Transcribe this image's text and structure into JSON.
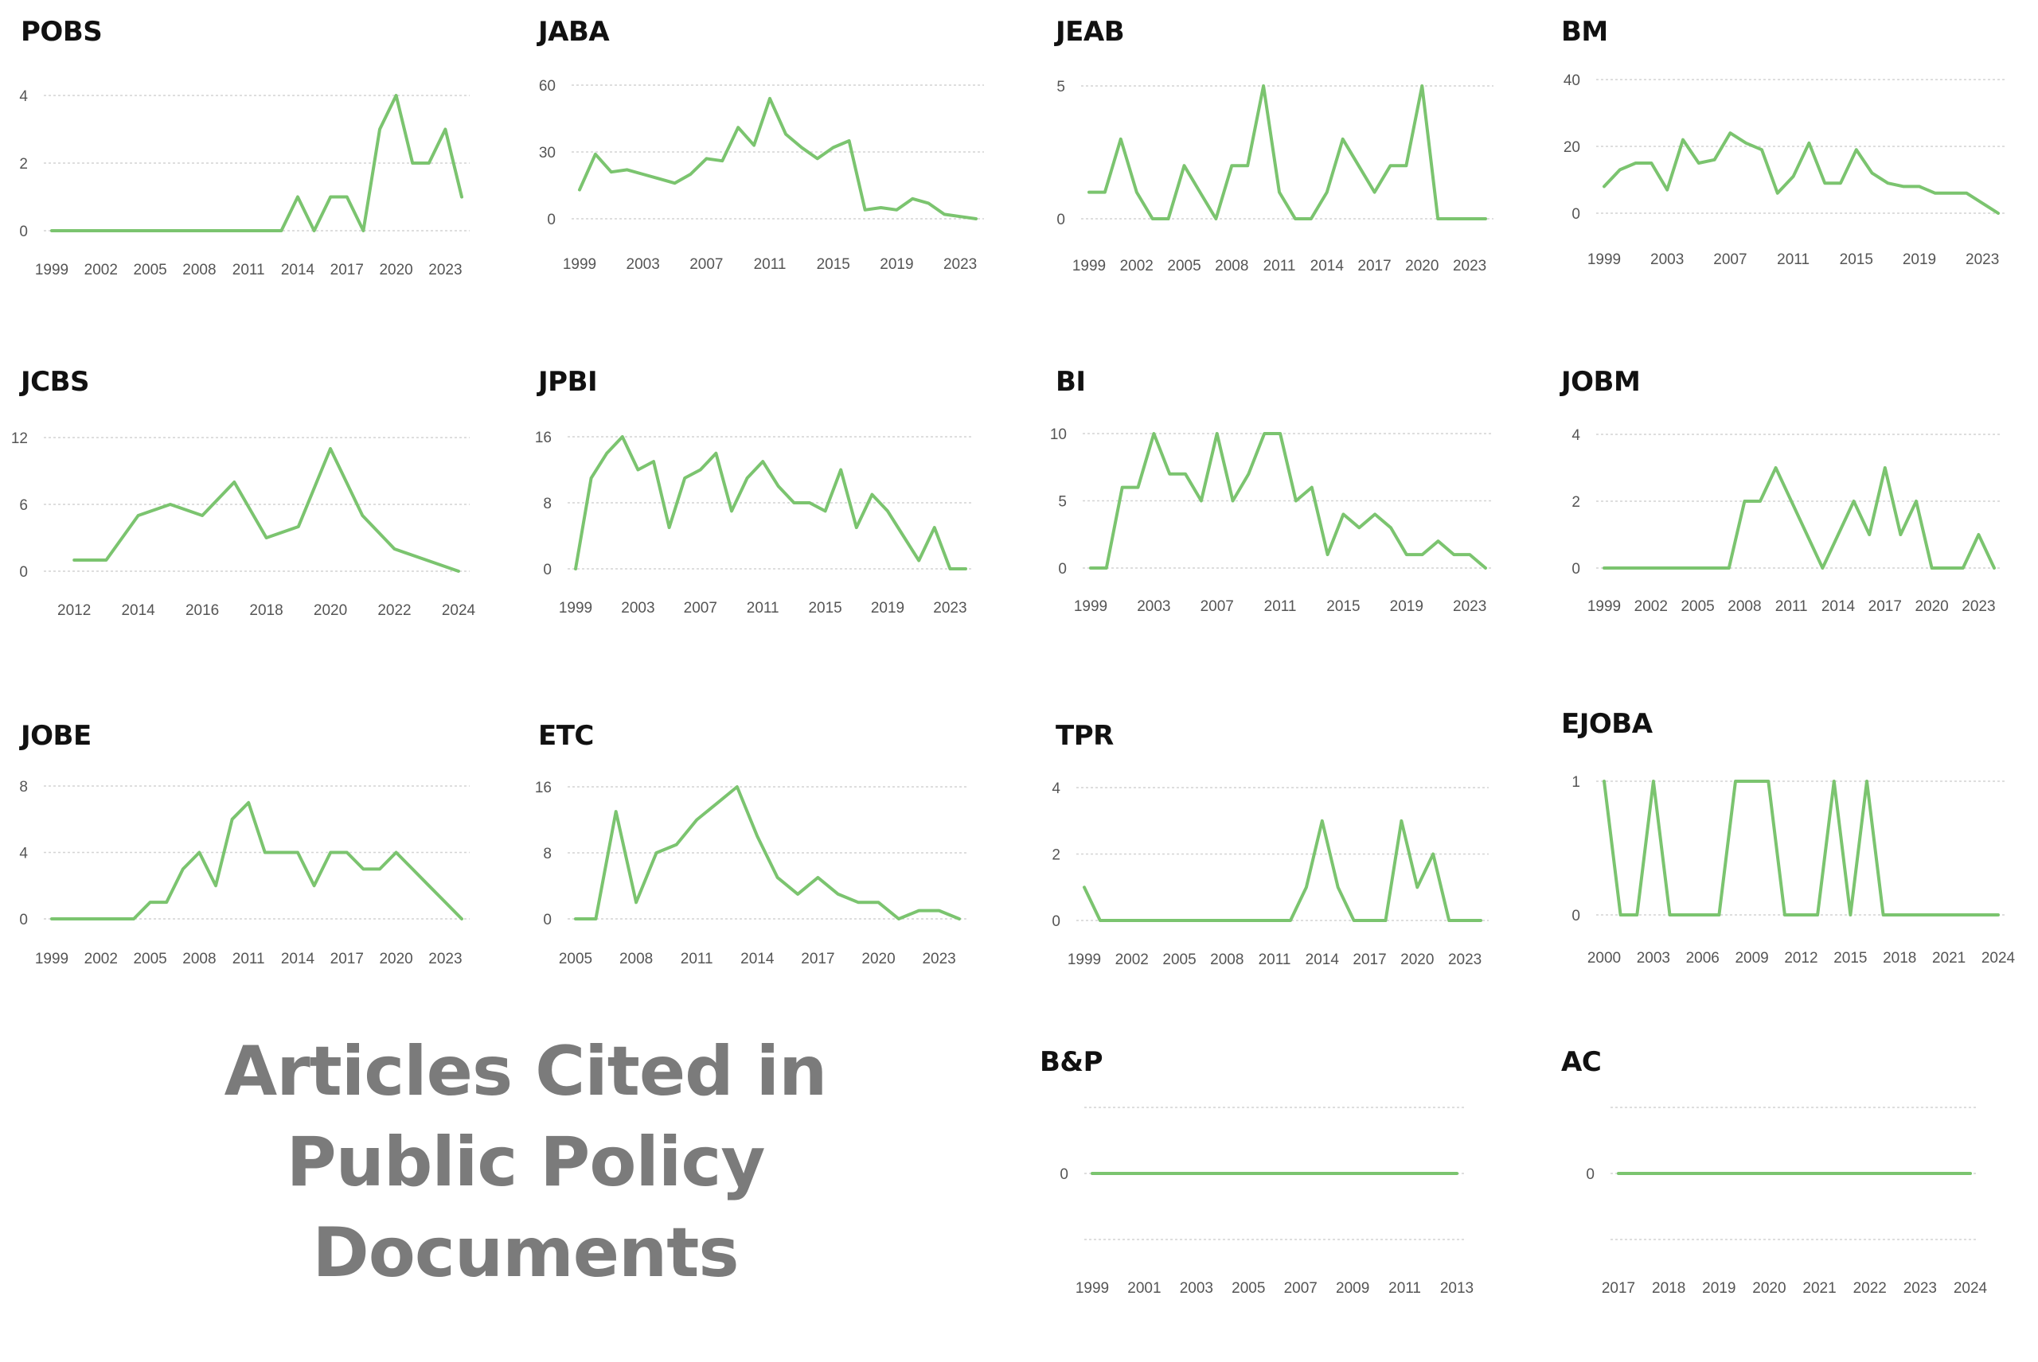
{
  "page_title": "Articles Cited in Public Policy Documents",
  "colors": {
    "line": "#7bc46f",
    "grid": "#d4d4d4",
    "tick": "#555555",
    "title": "#111111",
    "big_title": "#7b7b7b"
  },
  "chart_data": [
    {
      "type": "line",
      "title": "POBS",
      "ylim": [
        0,
        4
      ],
      "yticks": [
        0,
        2,
        4
      ],
      "xlim": [
        1999,
        2024
      ],
      "xticks": [
        1999,
        2002,
        2005,
        2008,
        2011,
        2014,
        2017,
        2020,
        2023
      ],
      "x": [
        1999,
        2000,
        2001,
        2002,
        2003,
        2004,
        2005,
        2006,
        2007,
        2008,
        2009,
        2010,
        2011,
        2012,
        2013,
        2014,
        2015,
        2016,
        2017,
        2018,
        2019,
        2020,
        2021,
        2022,
        2023,
        2024
      ],
      "values": [
        0,
        0,
        0,
        0,
        0,
        0,
        0,
        0,
        0,
        0,
        0,
        0,
        0,
        0,
        0,
        1,
        0,
        1,
        1,
        0,
        3,
        4,
        2,
        2,
        3,
        1
      ]
    },
    {
      "type": "line",
      "title": "JABA",
      "ylim": [
        0,
        60
      ],
      "yticks": [
        0,
        30,
        60
      ],
      "xlim": [
        1999,
        2024
      ],
      "xticks": [
        1999,
        2003,
        2007,
        2011,
        2015,
        2019,
        2023
      ],
      "x": [
        1999,
        2000,
        2001,
        2002,
        2003,
        2004,
        2005,
        2006,
        2007,
        2008,
        2009,
        2010,
        2011,
        2012,
        2013,
        2014,
        2015,
        2016,
        2017,
        2018,
        2019,
        2020,
        2021,
        2022,
        2023,
        2024
      ],
      "values": [
        13,
        29,
        21,
        22,
        20,
        18,
        16,
        20,
        27,
        26,
        41,
        33,
        54,
        38,
        32,
        27,
        32,
        35,
        4,
        5,
        4,
        9,
        7,
        2,
        1,
        0
      ]
    },
    {
      "type": "line",
      "title": "JEAB",
      "ylim": [
        0,
        5
      ],
      "yticks": [
        0,
        5
      ],
      "xlim": [
        1999,
        2024
      ],
      "xticks": [
        1999,
        2002,
        2005,
        2008,
        2011,
        2014,
        2017,
        2020,
        2023
      ],
      "x": [
        1999,
        2000,
        2001,
        2002,
        2003,
        2004,
        2005,
        2006,
        2007,
        2008,
        2009,
        2010,
        2011,
        2012,
        2013,
        2014,
        2015,
        2016,
        2017,
        2018,
        2019,
        2020,
        2021,
        2022,
        2023,
        2024
      ],
      "values": [
        1,
        1,
        3,
        1,
        0,
        0,
        2,
        1,
        0,
        2,
        2,
        5,
        1,
        0,
        0,
        1,
        3,
        2,
        1,
        2,
        2,
        5,
        0,
        0,
        0,
        0
      ]
    },
    {
      "type": "line",
      "title": "BM",
      "ylim": [
        0,
        40
      ],
      "yticks": [
        0,
        20,
        40
      ],
      "xlim": [
        1999,
        2024
      ],
      "xticks": [
        1999,
        2003,
        2007,
        2011,
        2015,
        2019,
        2023
      ],
      "x": [
        1999,
        2000,
        2001,
        2002,
        2003,
        2004,
        2005,
        2006,
        2007,
        2008,
        2009,
        2010,
        2011,
        2012,
        2013,
        2014,
        2015,
        2016,
        2017,
        2018,
        2019,
        2020,
        2021,
        2022,
        2023,
        2024
      ],
      "values": [
        8,
        13,
        15,
        15,
        7,
        22,
        15,
        16,
        24,
        21,
        19,
        6,
        11,
        21,
        9,
        9,
        19,
        12,
        9,
        8,
        8,
        6,
        6,
        6,
        3,
        0
      ]
    },
    {
      "type": "line",
      "title": "JCBS",
      "ylim": [
        0,
        12
      ],
      "yticks": [
        0,
        6,
        12
      ],
      "xlim": [
        2011.3,
        2024.1
      ],
      "xticks": [
        2012,
        2014,
        2016,
        2018,
        2020,
        2022,
        2024
      ],
      "x": [
        2012,
        2013,
        2014,
        2015,
        2016,
        2017,
        2018,
        2019,
        2020,
        2021,
        2022,
        2023,
        2024
      ],
      "values": [
        1,
        1,
        5,
        6,
        5,
        8,
        3,
        4,
        11,
        5,
        2,
        1,
        0
      ]
    },
    {
      "type": "line",
      "title": "JPBI",
      "ylim": [
        0,
        16
      ],
      "yticks": [
        0,
        8,
        16
      ],
      "xlim": [
        1999,
        2024
      ],
      "xticks": [
        1999,
        2003,
        2007,
        2011,
        2015,
        2019,
        2023
      ],
      "x": [
        1999,
        2000,
        2001,
        2002,
        2003,
        2004,
        2005,
        2006,
        2007,
        2008,
        2009,
        2010,
        2011,
        2012,
        2013,
        2014,
        2015,
        2016,
        2017,
        2018,
        2019,
        2020,
        2021,
        2022,
        2023,
        2024
      ],
      "values": [
        0,
        11,
        14,
        16,
        12,
        13,
        5,
        11,
        12,
        14,
        7,
        11,
        13,
        10,
        8,
        8,
        7,
        12,
        5,
        9,
        7,
        4,
        1,
        5,
        0,
        0
      ]
    },
    {
      "type": "line",
      "title": "BI",
      "ylim": [
        0,
        10
      ],
      "yticks": [
        0,
        5,
        10
      ],
      "xlim": [
        1999,
        2024
      ],
      "xticks": [
        1999,
        2003,
        2007,
        2011,
        2015,
        2019,
        2023
      ],
      "x": [
        1999,
        2000,
        2001,
        2002,
        2003,
        2004,
        2005,
        2006,
        2007,
        2008,
        2009,
        2010,
        2011,
        2012,
        2013,
        2014,
        2015,
        2016,
        2017,
        2018,
        2019,
        2020,
        2021,
        2022,
        2023,
        2024
      ],
      "values": [
        0,
        0,
        6,
        6,
        10,
        7,
        7,
        5,
        10,
        5,
        7,
        10,
        10,
        5,
        6,
        1,
        4,
        3,
        4,
        3,
        1,
        1,
        2,
        1,
        1,
        0
      ]
    },
    {
      "type": "line",
      "title": "JOBM",
      "ylim": [
        0,
        4
      ],
      "yticks": [
        0,
        2,
        4
      ],
      "xlim": [
        1999,
        2024
      ],
      "xticks": [
        1999,
        2002,
        2005,
        2008,
        2011,
        2014,
        2017,
        2020,
        2023
      ],
      "x": [
        1999,
        2000,
        2001,
        2002,
        2003,
        2004,
        2005,
        2006,
        2007,
        2008,
        2009,
        2010,
        2011,
        2012,
        2013,
        2014,
        2015,
        2016,
        2017,
        2018,
        2019,
        2020,
        2021,
        2022,
        2023,
        2024
      ],
      "values": [
        0,
        0,
        0,
        0,
        0,
        0,
        0,
        0,
        0,
        2,
        2,
        3,
        2,
        1,
        0,
        1,
        2,
        1,
        3,
        1,
        2,
        0,
        0,
        0,
        1,
        0
      ]
    },
    {
      "type": "line",
      "title": "JOBE",
      "ylim": [
        0,
        8
      ],
      "yticks": [
        0,
        4,
        8
      ],
      "xlim": [
        1999,
        2024
      ],
      "xticks": [
        1999,
        2002,
        2005,
        2008,
        2011,
        2014,
        2017,
        2020,
        2023
      ],
      "x": [
        1999,
        2000,
        2001,
        2002,
        2003,
        2004,
        2005,
        2006,
        2007,
        2008,
        2009,
        2010,
        2011,
        2012,
        2013,
        2014,
        2015,
        2016,
        2017,
        2018,
        2019,
        2020,
        2021,
        2022,
        2023,
        2024
      ],
      "values": [
        0,
        0,
        0,
        0,
        0,
        0,
        1,
        1,
        3,
        4,
        2,
        6,
        7,
        4,
        4,
        4,
        2,
        4,
        4,
        3,
        3,
        4,
        3,
        2,
        1,
        0
      ]
    },
    {
      "type": "line",
      "title": "ETC",
      "ylim": [
        0,
        16
      ],
      "yticks": [
        0,
        8,
        16
      ],
      "xlim": [
        2005,
        2024
      ],
      "xticks": [
        2005,
        2008,
        2011,
        2014,
        2017,
        2020,
        2023
      ],
      "x": [
        2005,
        2006,
        2007,
        2008,
        2009,
        2010,
        2011,
        2012,
        2013,
        2014,
        2015,
        2016,
        2017,
        2018,
        2019,
        2020,
        2021,
        2022,
        2023,
        2024
      ],
      "values": [
        0,
        0,
        13,
        2,
        8,
        9,
        12,
        14,
        16,
        10,
        5,
        3,
        5,
        3,
        2,
        2,
        0,
        1,
        1,
        0
      ]
    },
    {
      "type": "line",
      "title": "TPR",
      "ylim": [
        0,
        4
      ],
      "yticks": [
        0,
        2,
        4
      ],
      "xlim": [
        1999,
        2024
      ],
      "xticks": [
        1999,
        2002,
        2005,
        2008,
        2011,
        2014,
        2017,
        2020,
        2023
      ],
      "x": [
        1999,
        2000,
        2001,
        2002,
        2003,
        2004,
        2005,
        2006,
        2007,
        2008,
        2009,
        2010,
        2011,
        2012,
        2013,
        2014,
        2015,
        2016,
        2017,
        2018,
        2019,
        2020,
        2021,
        2022,
        2023,
        2024
      ],
      "values": [
        1,
        0,
        0,
        0,
        0,
        0,
        0,
        0,
        0,
        0,
        0,
        0,
        0,
        0,
        1,
        3,
        1,
        0,
        0,
        0,
        3,
        1,
        2,
        0,
        0,
        0
      ]
    },
    {
      "type": "line",
      "title": "EJOBA",
      "ylim": [
        0,
        1
      ],
      "yticks": [
        0,
        1
      ],
      "xlim": [
        2000,
        2024
      ],
      "xticks": [
        2000,
        2003,
        2006,
        2009,
        2012,
        2015,
        2018,
        2021,
        2024
      ],
      "x": [
        2000,
        2001,
        2002,
        2003,
        2004,
        2005,
        2006,
        2007,
        2008,
        2009,
        2010,
        2011,
        2012,
        2013,
        2014,
        2015,
        2016,
        2017,
        2018,
        2019,
        2020,
        2021,
        2022,
        2023,
        2024
      ],
      "values": [
        1,
        0,
        0,
        1,
        0,
        0,
        0,
        0,
        1,
        1,
        1,
        0,
        0,
        0,
        1,
        0,
        1,
        0,
        0,
        0,
        0,
        0,
        0,
        0,
        0
      ]
    },
    {
      "type": "line",
      "title": "B&P",
      "ylim": [
        -1,
        1
      ],
      "yticks": [
        0
      ],
      "xlim": [
        1999,
        2013
      ],
      "xticks": [
        1999,
        2001,
        2003,
        2005,
        2007,
        2009,
        2011,
        2013
      ],
      "x": [
        1999,
        2000,
        2001,
        2002,
        2003,
        2004,
        2005,
        2006,
        2007,
        2008,
        2009,
        2010,
        2011,
        2012,
        2013
      ],
      "values": [
        0,
        0,
        0,
        0,
        0,
        0,
        0,
        0,
        0,
        0,
        0,
        0,
        0,
        0,
        0
      ]
    },
    {
      "type": "line",
      "title": "AC",
      "ylim": [
        -1,
        1
      ],
      "yticks": [
        0
      ],
      "xlim": [
        2017,
        2024
      ],
      "xticks": [
        2017,
        2018,
        2019,
        2020,
        2021,
        2022,
        2023,
        2024
      ],
      "x": [
        2017,
        2018,
        2019,
        2020,
        2021,
        2022,
        2023,
        2024
      ],
      "values": [
        0,
        0,
        0,
        0,
        0,
        0,
        0,
        0
      ]
    }
  ]
}
